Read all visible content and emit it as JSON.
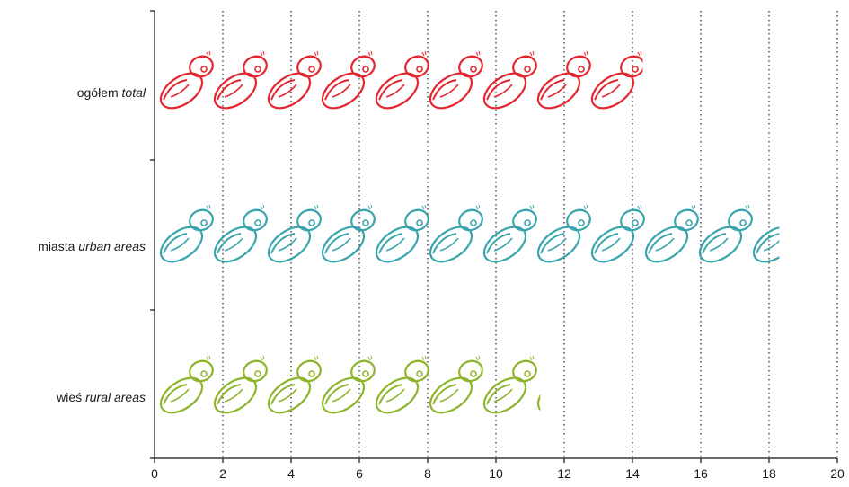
{
  "chart_data": {
    "type": "bar",
    "orientation": "horizontal",
    "pictogram": "baby-icon",
    "categories": [
      {
        "pl": "ogółem",
        "en": "total"
      },
      {
        "pl": "miasta",
        "en": "urban areas"
      },
      {
        "pl": "wieś",
        "en": "rural areas"
      }
    ],
    "series": [
      {
        "values": [
          14.3,
          18.3,
          11.3
        ]
      }
    ],
    "colors": [
      "#e3262f",
      "#3aa5ac",
      "#8db52d"
    ],
    "xlim": [
      0,
      20
    ],
    "xticks": [
      0,
      2,
      4,
      6,
      8,
      10,
      12,
      14,
      16,
      18,
      20
    ],
    "grid": "vertical-dotted",
    "title": "",
    "xlabel": "",
    "ylabel": ""
  }
}
